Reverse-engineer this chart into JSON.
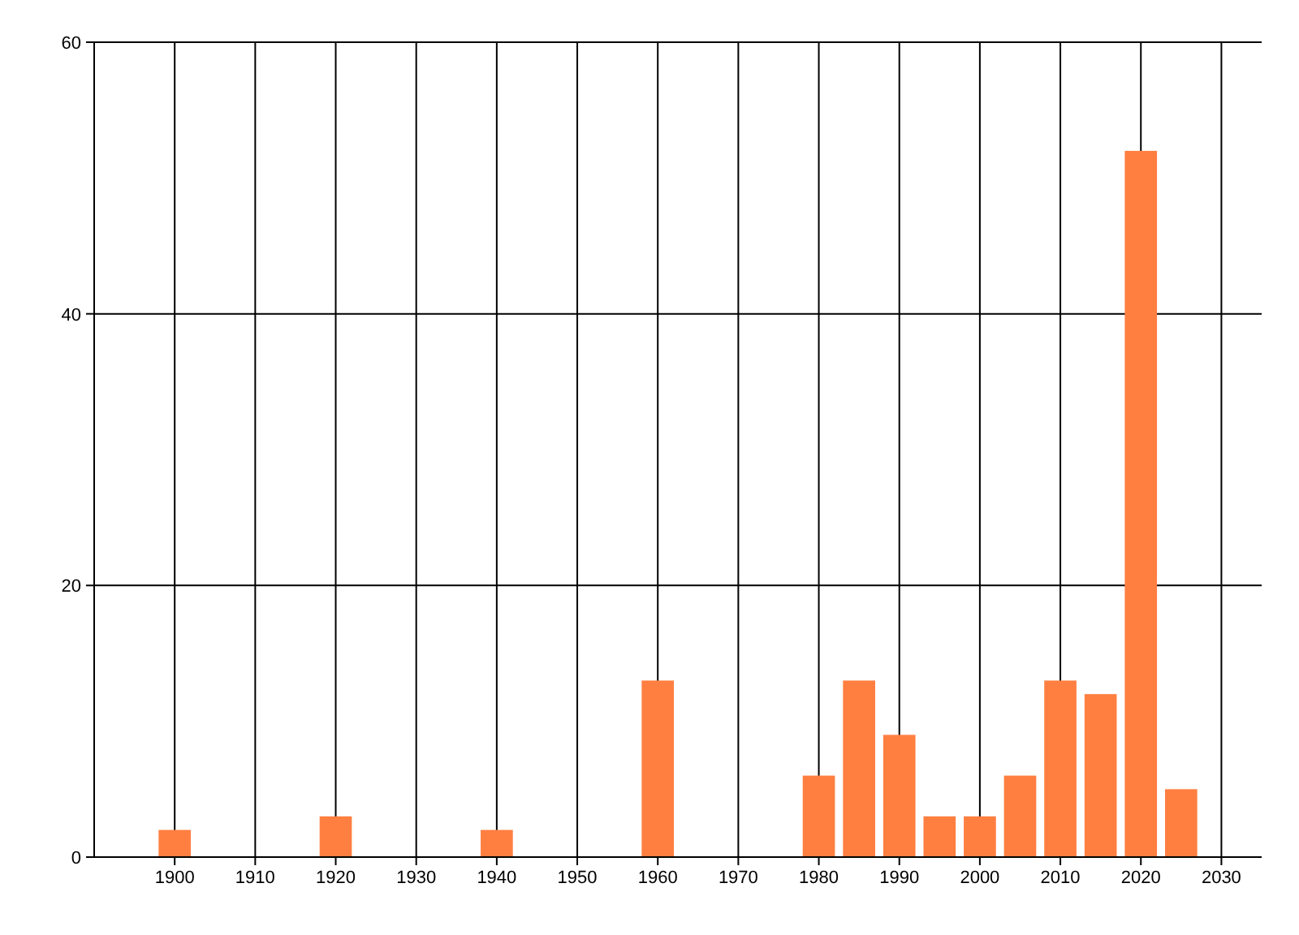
{
  "chart_data": {
    "type": "bar",
    "x": [
      1900,
      1920,
      1940,
      1960,
      1980,
      1985,
      1990,
      1995,
      2000,
      2005,
      2010,
      2015,
      2020,
      2025
    ],
    "values": [
      2,
      3,
      2,
      13,
      6,
      13,
      9,
      3,
      3,
      6,
      13,
      12,
      52,
      5
    ],
    "color": "#ff7f41",
    "xlim": [
      1890,
      2035
    ],
    "xticks": [
      1900,
      1910,
      1920,
      1930,
      1940,
      1950,
      1960,
      1970,
      1980,
      1990,
      2000,
      2010,
      2020,
      2030
    ],
    "ylim": [
      0,
      60
    ],
    "yticks": [
      0,
      20,
      40,
      60
    ],
    "grid": true
  }
}
